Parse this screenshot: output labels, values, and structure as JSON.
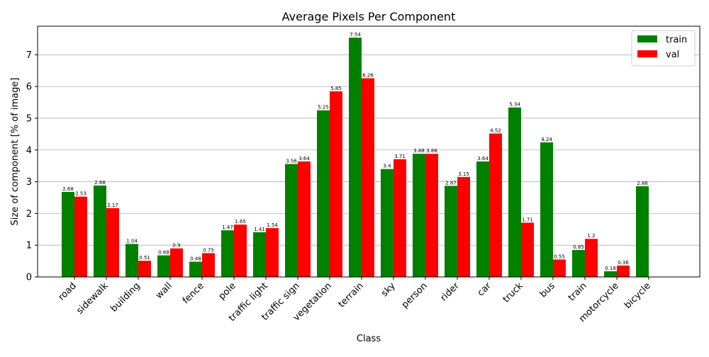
{
  "chart_data": {
    "type": "bar",
    "title": "Average Pixels Per Component",
    "xlabel": "Class",
    "ylabel": "Size of component [% of image]",
    "ylim": [
      0,
      7.9
    ],
    "yticks": [
      0,
      1,
      2,
      3,
      4,
      5,
      6,
      7
    ],
    "grid": "y",
    "legend_position": "top-right",
    "categories": [
      "road",
      "sidewalk",
      "building",
      "wall",
      "fence",
      "pole",
      "traffic light",
      "traffic sign",
      "vegetation",
      "terrain",
      "sky",
      "person",
      "rider",
      "car",
      "truck",
      "bus",
      "train",
      "motorcycle",
      "bicycle"
    ],
    "series": [
      {
        "name": "train",
        "color": "#008000",
        "values": [
          2.68,
          2.88,
          1.04,
          0.68,
          0.48,
          1.47,
          1.41,
          3.56,
          5.25,
          7.54,
          3.4,
          3.88,
          2.87,
          3.64,
          5.34,
          4.24,
          0.85,
          0.18,
          2.86
        ],
        "labels": [
          "2.68",
          "2.88",
          "1.04",
          "0.68",
          "0.48",
          "1.47",
          "1.41",
          "3.56",
          "5.25",
          "7.54",
          "3.4",
          "3.88",
          "2.87",
          "3.64",
          "5.34",
          "4.24",
          "0.85",
          "0.18",
          "2.86"
        ]
      },
      {
        "name": "val",
        "color": "#ff0000",
        "values": [
          2.53,
          2.17,
          0.51,
          0.9,
          0.75,
          1.65,
          1.54,
          3.64,
          5.85,
          6.26,
          3.71,
          3.88,
          3.15,
          4.52,
          1.71,
          0.55,
          1.2,
          0.36,
          null
        ],
        "labels": [
          "2.53",
          "2.17",
          "0.51",
          "0.9",
          "0.75",
          "1.65",
          "1.54",
          "3.64",
          "5.85",
          "6.26",
          "3.71",
          "3.88",
          "3.15",
          "4.52",
          "1.71",
          "0.55",
          "1.2",
          "0.36",
          ""
        ]
      }
    ]
  }
}
